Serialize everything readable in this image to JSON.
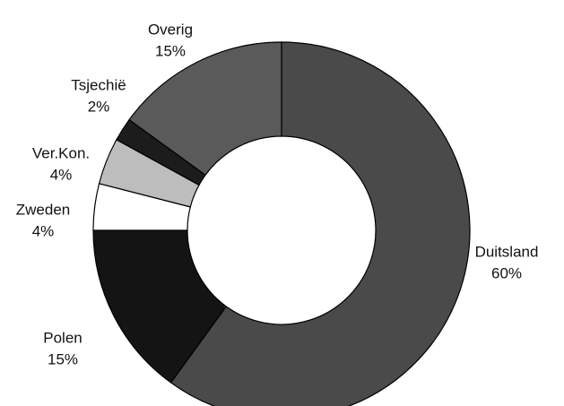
{
  "chart_data": {
    "type": "donut",
    "categories": [
      "Duitsland",
      "Polen",
      "Zweden",
      "Ver.Kon.",
      "Tsjechië",
      "Overig"
    ],
    "values": [
      60,
      15,
      4,
      4,
      2,
      15
    ],
    "value_labels": [
      "60%",
      "15%",
      "4%",
      "4%",
      "2%",
      "15%"
    ],
    "colors": [
      "#4a4a4a",
      "#141414",
      "#ffffff",
      "#bdbdbd",
      "#1c1c1c",
      "#5a5a5a"
    ]
  }
}
